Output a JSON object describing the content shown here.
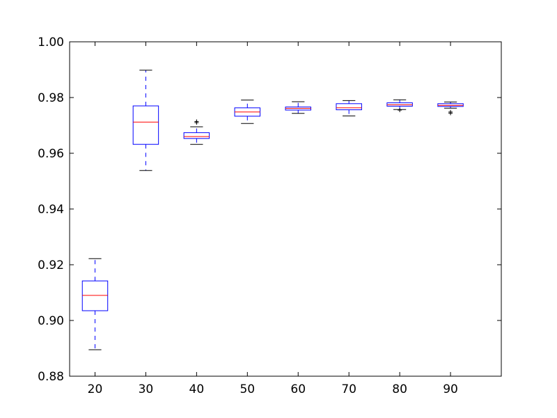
{
  "chart_data": {
    "type": "box",
    "title": "",
    "xlabel": "",
    "ylabel": "",
    "ylim": [
      0.88,
      1.0
    ],
    "y_ticks": [
      0.88,
      0.9,
      0.92,
      0.94,
      0.96,
      0.98,
      1.0
    ],
    "y_tick_labels": [
      "0.88",
      "0.90",
      "0.92",
      "0.94",
      "0.96",
      "0.98",
      "1.00"
    ],
    "categories": [
      "20",
      "30",
      "40",
      "50",
      "60",
      "70",
      "80",
      "90"
    ],
    "grid": false,
    "colors": {
      "box": "#0000ff",
      "median": "#ff0000",
      "whisker": "#0000ff",
      "cap": "#000000",
      "axes": "#000000"
    },
    "boxes": [
      {
        "category": "20",
        "whislo": 0.8895,
        "q1": 0.9035,
        "median": 0.909,
        "q3": 0.9142,
        "whishi": 0.9222,
        "fliers": []
      },
      {
        "category": "30",
        "whislo": 0.9538,
        "q1": 0.9632,
        "median": 0.9712,
        "q3": 0.977,
        "whishi": 0.9898,
        "fliers": []
      },
      {
        "category": "40",
        "whislo": 0.9632,
        "q1": 0.9653,
        "median": 0.966,
        "q3": 0.9674,
        "whishi": 0.9695,
        "fliers": [
          0.971,
          0.9714
        ]
      },
      {
        "category": "50",
        "whislo": 0.9707,
        "q1": 0.9733,
        "median": 0.9748,
        "q3": 0.9763,
        "whishi": 0.9791,
        "fliers": []
      },
      {
        "category": "60",
        "whislo": 0.9743,
        "q1": 0.9755,
        "median": 0.9761,
        "q3": 0.9766,
        "whishi": 0.9785,
        "fliers": []
      },
      {
        "category": "70",
        "whislo": 0.9734,
        "q1": 0.9756,
        "median": 0.9763,
        "q3": 0.9778,
        "whishi": 0.9789,
        "fliers": []
      },
      {
        "category": "80",
        "whislo": 0.9757,
        "q1": 0.9769,
        "median": 0.9774,
        "q3": 0.9781,
        "whishi": 0.9792,
        "fliers": [
          0.9755
        ]
      },
      {
        "category": "90",
        "whislo": 0.9762,
        "q1": 0.9768,
        "median": 0.9772,
        "q3": 0.9778,
        "whishi": 0.9784,
        "fliers": [
          0.9748,
          0.9744
        ]
      }
    ]
  }
}
